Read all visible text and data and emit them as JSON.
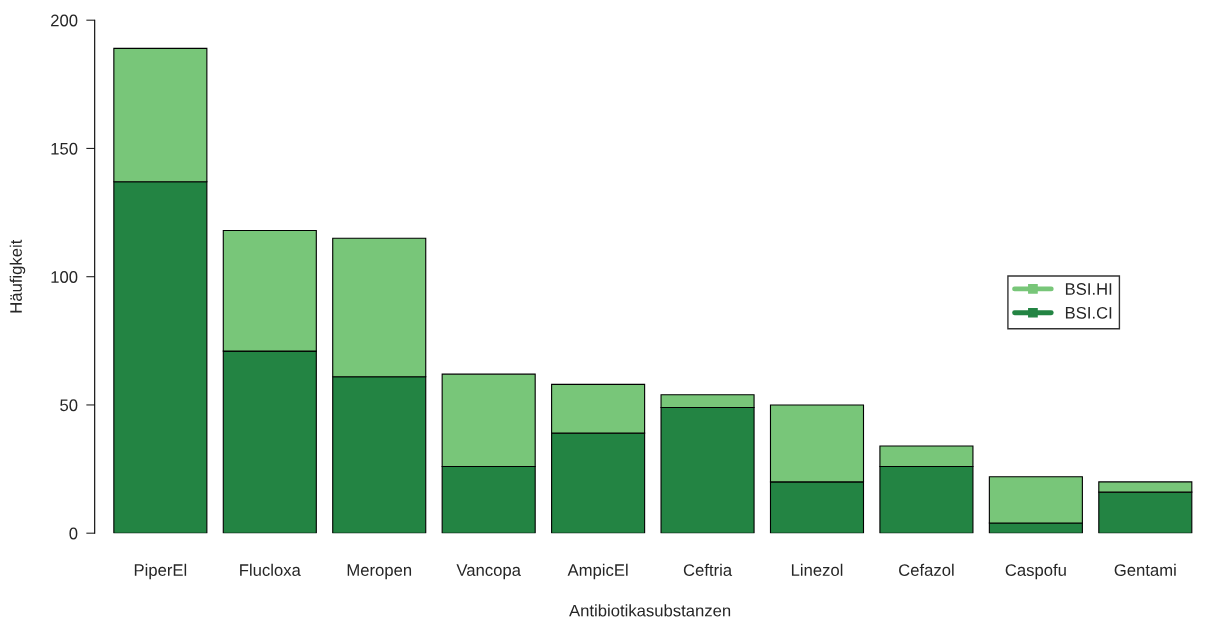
{
  "chart_data": {
    "type": "bar",
    "stacked": true,
    "xlabel": "Antibiotikasubstanzen",
    "ylabel": "Häufigkeit",
    "categories": [
      "PiperEl",
      "Flucloxa",
      "Meropen",
      "Vancopa",
      "AmpicEl",
      "Ceftria",
      "Linezol",
      "Cefazol",
      "Caspofu",
      "Gentami"
    ],
    "series": [
      {
        "name": "BSI.CI",
        "color": "#238443",
        "values": [
          137,
          71,
          61,
          26,
          39,
          49,
          20,
          26,
          4,
          16
        ]
      },
      {
        "name": "BSI.HI",
        "color": "#78c679",
        "values": [
          52,
          47,
          54,
          36,
          19,
          5,
          30,
          8,
          18,
          4
        ]
      }
    ],
    "ylim": [
      0,
      200
    ],
    "yticks": [
      0,
      50,
      100,
      150,
      200
    ],
    "grid": false,
    "legend": "right",
    "marker": "square"
  }
}
